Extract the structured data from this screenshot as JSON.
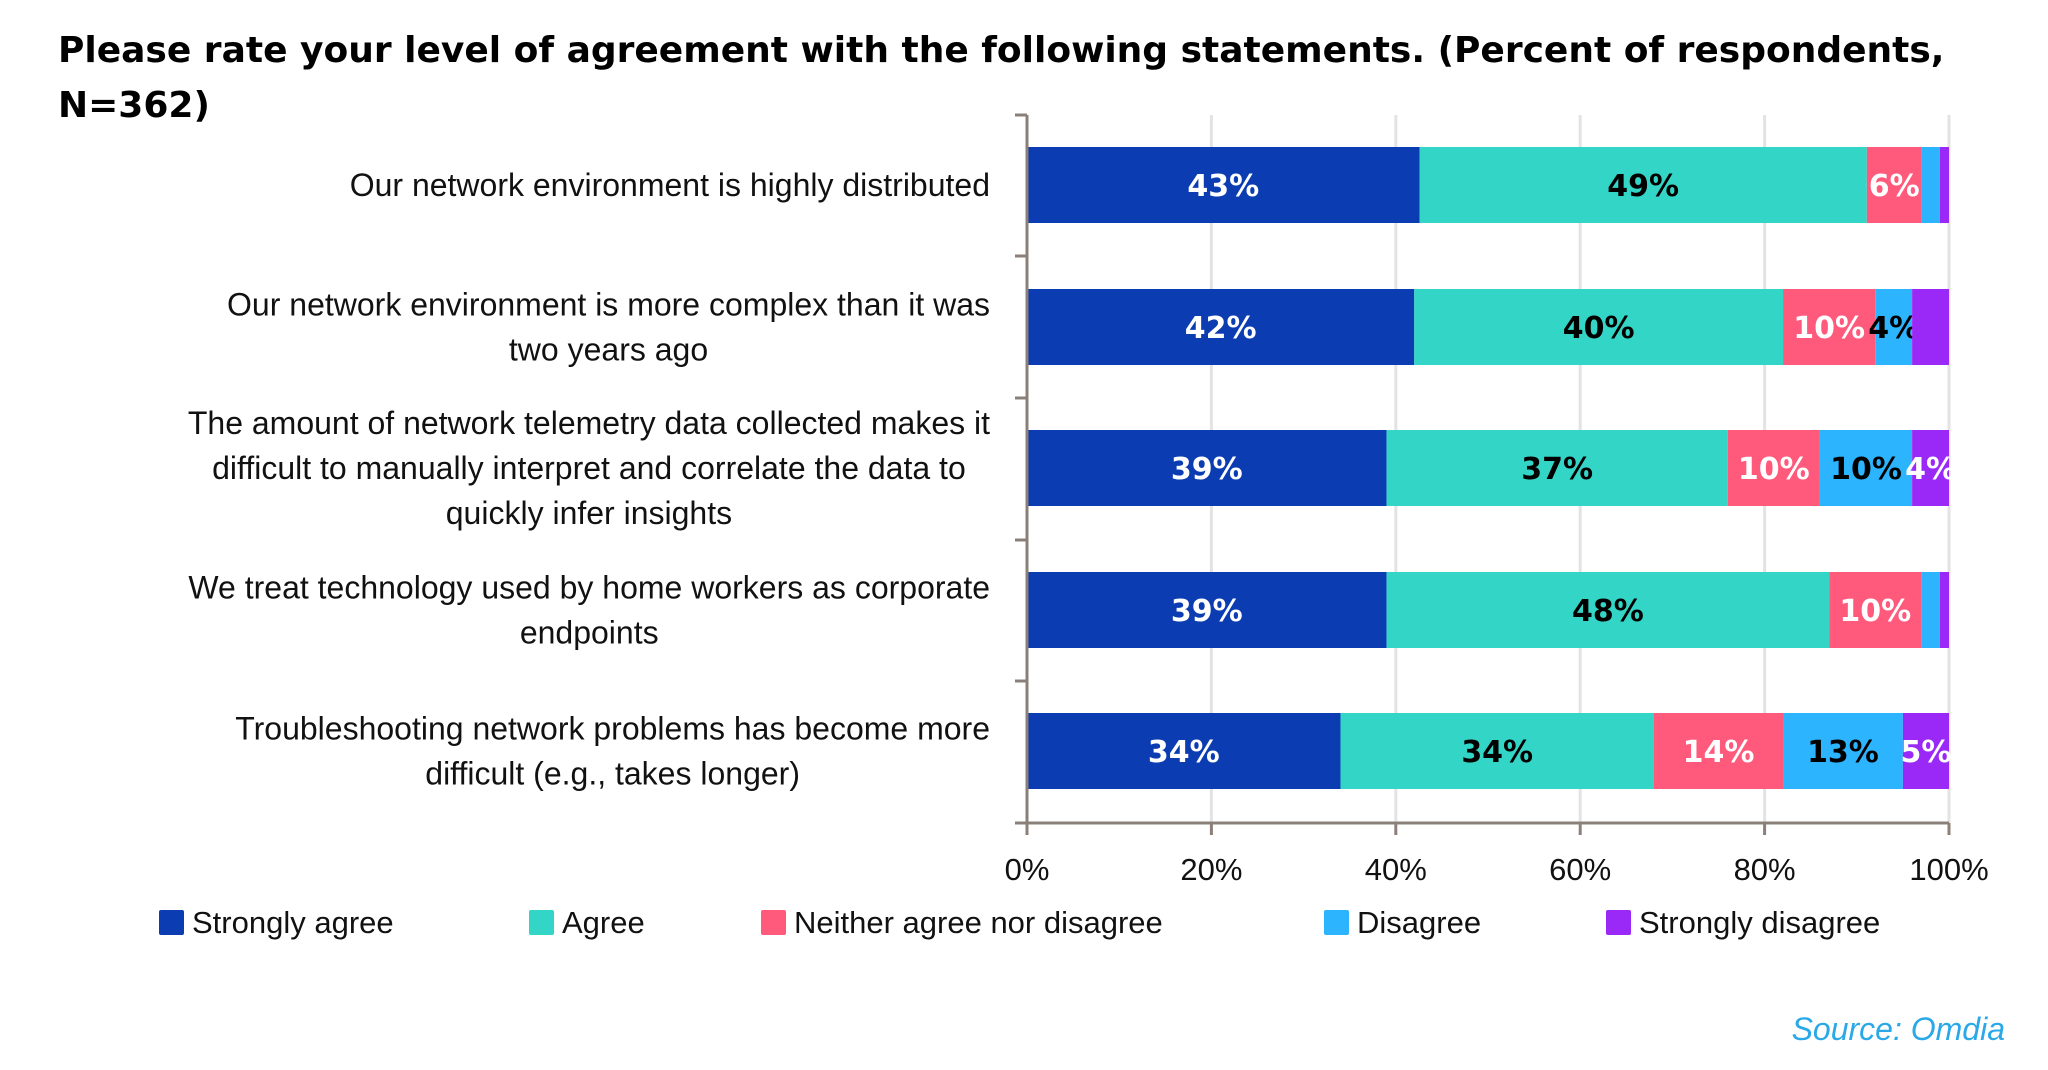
{
  "chart_data": {
    "type": "bar",
    "orientation": "horizontal",
    "stacked": true,
    "title": "Please rate your level of agreement with the following statements. (Percent of respondents, N=362)",
    "title_lines": [
      "Please rate your level of agreement with the following statements. (Percent of respondents,",
      "N=362)"
    ],
    "categories": [
      [
        "Our network environment is highly distributed"
      ],
      [
        "Our network environment is more complex than it was",
        "two years ago"
      ],
      [
        "The amount of network telemetry data collected makes it",
        "difficult to manually interpret and correlate the data to",
        "quickly infer insights"
      ],
      [
        "We treat technology used by home workers as corporate",
        "endpoints"
      ],
      [
        "Troubleshooting network problems has become more",
        "difficult (e.g., takes longer)"
      ]
    ],
    "series": [
      {
        "name": "Strongly agree",
        "color": "#0b3cb2",
        "label_color": "#ffffff",
        "values": [
          43,
          42,
          39,
          39,
          34
        ],
        "labels": [
          "43%",
          "42%",
          "39%",
          "39%",
          "34%"
        ]
      },
      {
        "name": "Agree",
        "color": "#33d6c6",
        "label_color": "#000000",
        "values": [
          49,
          40,
          37,
          48,
          34
        ],
        "labels": [
          "49%",
          "40%",
          "37%",
          "48%",
          "34%"
        ]
      },
      {
        "name": "Neither agree nor disagree",
        "color": "#ff5a7c",
        "label_color": "#ffffff",
        "values": [
          6,
          10,
          10,
          10,
          14
        ],
        "labels": [
          "6%",
          "10%",
          "10%",
          "10%",
          "14%"
        ]
      },
      {
        "name": "Disagree",
        "color": "#2cb4ff",
        "label_color": "#000000",
        "values": [
          2,
          4,
          10,
          2,
          13
        ],
        "labels": [
          "",
          "4%",
          "10%",
          "",
          "13%"
        ]
      },
      {
        "name": "Strongly disagree",
        "color": "#9a28f6",
        "label_color": "#ffffff",
        "values": [
          1,
          4,
          4,
          1,
          5
        ],
        "labels": [
          "",
          "",
          "4%",
          "",
          "5%"
        ]
      }
    ],
    "xlim": [
      0,
      100
    ],
    "xticks": [
      "0%",
      "20%",
      "40%",
      "60%",
      "80%",
      "100%"
    ],
    "grid": true,
    "legend_position": "bottom",
    "source": "Source: Omdia"
  }
}
